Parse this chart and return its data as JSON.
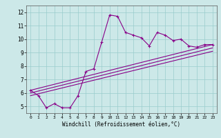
{
  "xlabel": "Windchill (Refroidissement éolien,°C)",
  "bg_color": "#cce8e8",
  "line_color": "#880088",
  "grid_color": "#99cccc",
  "xlim": [
    -0.5,
    23.5
  ],
  "ylim": [
    4.5,
    12.5
  ],
  "xticks": [
    0,
    1,
    2,
    3,
    4,
    5,
    6,
    7,
    8,
    9,
    10,
    11,
    12,
    13,
    14,
    15,
    16,
    17,
    18,
    19,
    20,
    21,
    22,
    23
  ],
  "yticks": [
    5,
    6,
    7,
    8,
    9,
    10,
    11,
    12
  ],
  "line1_x": [
    0,
    1,
    2,
    3,
    4,
    5,
    6,
    7,
    8,
    9,
    10,
    11,
    12,
    13,
    14,
    15,
    16,
    17,
    18,
    19,
    20,
    21,
    22,
    23
  ],
  "line1_y": [
    6.2,
    5.8,
    4.9,
    5.2,
    4.9,
    4.9,
    5.8,
    7.6,
    7.8,
    9.8,
    11.8,
    11.7,
    10.5,
    10.3,
    10.1,
    9.5,
    10.5,
    10.3,
    9.9,
    10.0,
    9.5,
    9.4,
    9.6,
    9.6
  ],
  "line2_x": [
    0,
    23
  ],
  "line2_y": [
    6.2,
    9.6
  ],
  "line3_x": [
    0,
    23
  ],
  "line3_y": [
    6.0,
    9.35
  ],
  "line4_x": [
    0,
    23
  ],
  "line4_y": [
    5.8,
    9.1
  ]
}
